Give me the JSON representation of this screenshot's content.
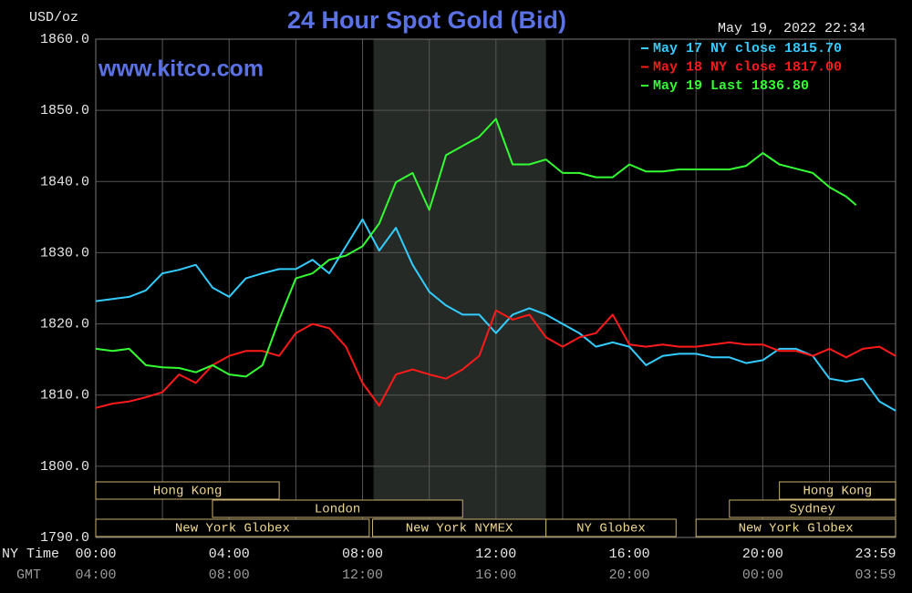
{
  "chart_data": {
    "type": "line",
    "title": "24 Hour Spot Gold (Bid)",
    "timestamp": "May 19, 2022 22:34",
    "watermark": "www.kitco.com",
    "y_label": "USD/oz",
    "x_label": "NY Time",
    "x2_label": "GMT",
    "ylim": [
      1790,
      1860
    ],
    "yticks": [
      {
        "value": 1790,
        "label": "1790.0"
      },
      {
        "value": 1800,
        "label": "1800.0"
      },
      {
        "value": 1810,
        "label": "1810.0"
      },
      {
        "value": 1820,
        "label": "1820.0"
      },
      {
        "value": 1830,
        "label": "1830.0"
      },
      {
        "value": 1840,
        "label": "1840.0"
      },
      {
        "value": 1850,
        "label": "1850.0"
      },
      {
        "value": 1860,
        "label": "1860.0"
      }
    ],
    "xlim": [
      0,
      23.983
    ],
    "xticks": [
      {
        "value": 0,
        "label": "00:00"
      },
      {
        "value": 4,
        "label": "04:00"
      },
      {
        "value": 8,
        "label": "08:00"
      },
      {
        "value": 12,
        "label": "12:00"
      },
      {
        "value": 16,
        "label": "16:00"
      },
      {
        "value": 20,
        "label": "20:00"
      },
      {
        "value": 23.983,
        "label": "23:59"
      }
    ],
    "x2_tick_labels": [
      "04:00",
      "08:00",
      "12:00",
      "16:00",
      "20:00",
      "00:00",
      "03:59"
    ],
    "x_minor_ticks": [
      2,
      6,
      10,
      14,
      18,
      22
    ],
    "grid": true,
    "shade": [
      8.33,
      13.5
    ],
    "session_rows": [
      [
        {
          "name": "Hong Kong",
          "start": 0,
          "end": 5.5
        },
        {
          "name": "Hong Kong",
          "start": 20.5,
          "end": 23.983
        }
      ],
      [
        {
          "name": "London",
          "start": 3.5,
          "end": 11
        },
        {
          "name": "Sydney",
          "start": 19,
          "end": 23.983
        }
      ],
      [
        {
          "name": "New York Globex",
          "start": 0,
          "end": 8.2
        },
        {
          "name": "New York NYMEX",
          "start": 8.3,
          "end": 13.5
        },
        {
          "name": "NY Globex",
          "start": 13.5,
          "end": 17.4
        },
        {
          "name": "New York Globex",
          "start": 18,
          "end": 23.983
        }
      ]
    ],
    "series": [
      {
        "name": "May 17 NY close",
        "last": {
          "value": 1815.7,
          "label": "1815.70"
        },
        "color": "#33ccff",
        "x": [
          0,
          0.5,
          1,
          1.5,
          2,
          2.5,
          3,
          3.5,
          4,
          4.5,
          5,
          5.5,
          6,
          6.5,
          7,
          7.5,
          8,
          8.5,
          9,
          9.5,
          10,
          10.5,
          11,
          11.5,
          12,
          12.5,
          13,
          13.5,
          14,
          14.5,
          15,
          15.5,
          16,
          16.5,
          17,
          17.5,
          18,
          18.5,
          19,
          19.5,
          20,
          20.5,
          21,
          21.5,
          22,
          22.5,
          23,
          23.5,
          23.983
        ],
        "values": [
          1823.2,
          1823.5,
          1823.8,
          1824.7,
          1827.1,
          1827.6,
          1828.3,
          1825.1,
          1823.8,
          1826.4,
          1827.1,
          1827.7,
          1827.7,
          1829.0,
          1827.1,
          1830.9,
          1834.7,
          1830.3,
          1833.5,
          1828.3,
          1824.5,
          1822.6,
          1821.3,
          1821.3,
          1818.7,
          1821.3,
          1822.2,
          1821.3,
          1820.0,
          1818.7,
          1816.8,
          1817.4,
          1816.8,
          1814.2,
          1815.5,
          1815.8,
          1815.8,
          1815.3,
          1815.3,
          1814.5,
          1814.9,
          1816.5,
          1816.5,
          1815.5,
          1812.3,
          1811.9,
          1812.3,
          1809.1,
          1807.8
        ]
      },
      {
        "name": "May 18 NY close",
        "last": {
          "value": 1817,
          "label": "1817.00"
        },
        "color": "#ff1a1a",
        "x": [
          0,
          0.5,
          1,
          1.5,
          2,
          2.5,
          3,
          3.5,
          4,
          4.5,
          5,
          5.5,
          6,
          6.5,
          7,
          7.5,
          8,
          8.5,
          9,
          9.5,
          10,
          10.5,
          11,
          11.5,
          12,
          12.5,
          13,
          13.5,
          14,
          14.5,
          15,
          15.5,
          16,
          16.5,
          17,
          17.5,
          18,
          18.5,
          19,
          19.5,
          20,
          20.5,
          21,
          21.5,
          22,
          22.5,
          23,
          23.5,
          23.983
        ],
        "values": [
          1808.2,
          1808.8,
          1809.1,
          1809.7,
          1810.4,
          1812.9,
          1811.7,
          1814.2,
          1815.5,
          1816.2,
          1816.2,
          1815.5,
          1818.7,
          1820.0,
          1819.4,
          1816.8,
          1811.7,
          1808.5,
          1812.9,
          1813.6,
          1812.9,
          1812.3,
          1813.6,
          1815.5,
          1821.9,
          1820.6,
          1821.3,
          1818.1,
          1816.8,
          1818.1,
          1818.7,
          1821.3,
          1817.1,
          1816.8,
          1817.1,
          1816.8,
          1816.8,
          1817.1,
          1817.4,
          1817.1,
          1817.1,
          1816.2,
          1816.2,
          1815.5,
          1816.5,
          1815.3,
          1816.5,
          1816.8,
          1815.5
        ]
      },
      {
        "name": "May 19 Last",
        "last": {
          "value": 1836.8,
          "label": "1836.80"
        },
        "color": "#33ff33",
        "x": [
          0,
          0.5,
          1,
          1.5,
          2,
          2.5,
          3,
          3.5,
          4,
          4.5,
          5,
          5.5,
          6,
          6.5,
          7,
          7.5,
          8,
          8.5,
          9,
          9.5,
          10,
          10.5,
          11,
          11.5,
          12,
          12.5,
          13,
          13.5,
          14,
          14.5,
          15,
          15.5,
          16,
          16.5,
          17,
          17.5,
          18,
          18.5,
          19,
          19.5,
          20,
          20.5,
          21,
          21.5,
          22,
          22.5,
          22.8
        ],
        "values": [
          1816.5,
          1816.2,
          1816.5,
          1814.2,
          1813.9,
          1813.8,
          1813.2,
          1814.2,
          1812.9,
          1812.6,
          1814.2,
          1820.6,
          1826.4,
          1827.1,
          1829.0,
          1829.6,
          1830.9,
          1834.1,
          1839.9,
          1841.2,
          1836.0,
          1843.7,
          1845.0,
          1846.3,
          1848.8,
          1842.4,
          1842.4,
          1843.1,
          1841.2,
          1841.2,
          1840.6,
          1840.6,
          1842.4,
          1841.4,
          1841.4,
          1841.7,
          1841.7,
          1841.7,
          1841.7,
          1842.2,
          1844.0,
          1842.4,
          1841.8,
          1841.2,
          1839.2,
          1837.9,
          1836.7
        ]
      }
    ]
  }
}
